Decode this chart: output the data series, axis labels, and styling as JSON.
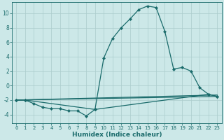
{
  "xlabel": "Humidex (Indice chaleur)",
  "bg_color": "#cce8e8",
  "grid_color": "#aacccc",
  "line_color": "#1a6b6b",
  "xlim": [
    -0.5,
    23.5
  ],
  "ylim": [
    -5.2,
    11.5
  ],
  "yticks": [
    -4,
    -2,
    0,
    2,
    4,
    6,
    8,
    10
  ],
  "xticks": [
    0,
    1,
    2,
    3,
    4,
    5,
    6,
    7,
    8,
    9,
    10,
    11,
    12,
    13,
    14,
    15,
    16,
    17,
    18,
    19,
    20,
    21,
    22,
    23
  ],
  "series": [
    {
      "x": [
        0,
        1,
        9,
        10,
        11,
        12,
        13,
        14,
        15,
        16,
        17,
        18,
        19,
        20,
        21,
        22,
        23
      ],
      "y": [
        -2.0,
        -2.0,
        -3.3,
        3.8,
        6.5,
        8.0,
        9.2,
        10.5,
        11.0,
        10.8,
        7.5,
        2.3,
        2.5,
        2.0,
        -0.3,
        -1.2,
        -1.5
      ],
      "marker": "D",
      "markersize": 2.2,
      "linewidth": 0.9
    },
    {
      "x": [
        0,
        1,
        2,
        3,
        4,
        5,
        6,
        7,
        8,
        9,
        22,
        23
      ],
      "y": [
        -2.0,
        -2.0,
        -2.5,
        -3.0,
        -3.2,
        -3.2,
        -3.5,
        -3.5,
        -4.2,
        -3.3,
        -1.2,
        -1.5
      ],
      "marker": "D",
      "markersize": 2.2,
      "linewidth": 0.9
    },
    {
      "x": [
        0,
        23
      ],
      "y": [
        -2.0,
        -1.3
      ],
      "marker": null,
      "markersize": 0,
      "linewidth": 0.9
    },
    {
      "x": [
        0,
        23
      ],
      "y": [
        -2.0,
        -1.5
      ],
      "marker": null,
      "markersize": 0,
      "linewidth": 0.9
    }
  ]
}
